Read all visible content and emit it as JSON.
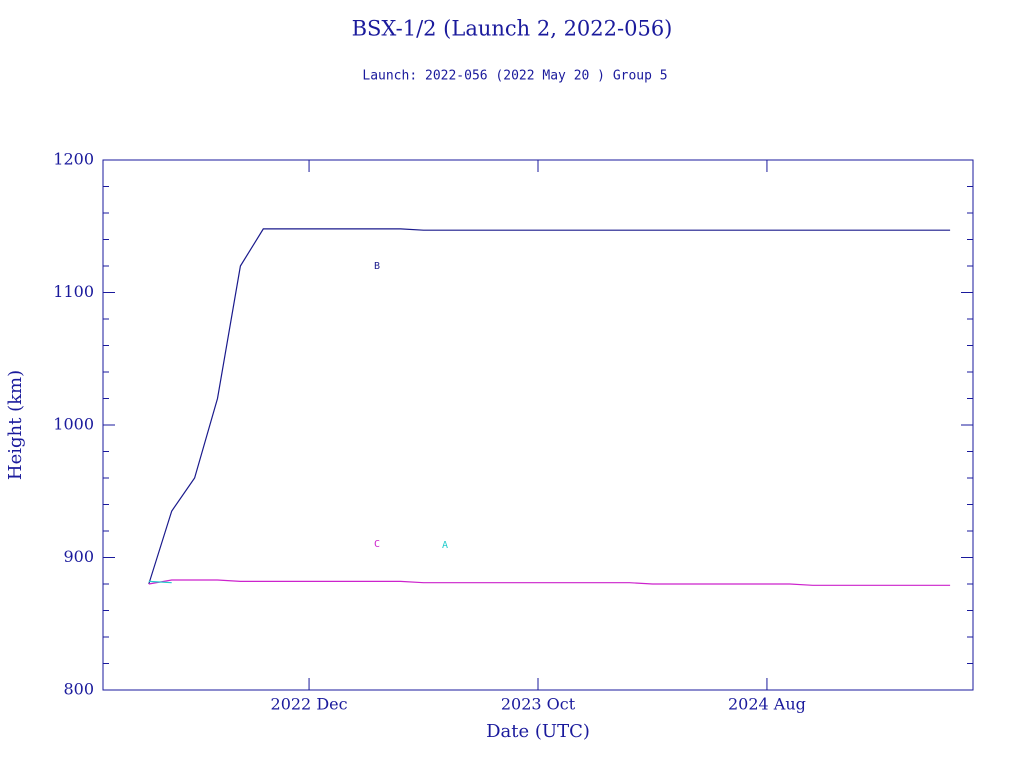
{
  "chart_data": {
    "type": "line",
    "title": "BSX-1/2 (Launch 2, 2022-056)",
    "subtitle": "Launch: 2022-056  (2022 May 20 )  Group 5",
    "x_label": "Date (UTC)",
    "y_label": "Height (km)",
    "xlim": [
      "2022-03",
      "2025-05"
    ],
    "xticks": [
      {
        "value": "2022-12",
        "label": "2022 Dec"
      },
      {
        "value": "2023-10",
        "label": "2023 Oct"
      },
      {
        "value": "2024-08",
        "label": "2024 Aug"
      }
    ],
    "ylim": [
      800,
      1200
    ],
    "yticks": [
      800,
      900,
      1000,
      1100,
      1200
    ],
    "yticks_minor": [
      820,
      840,
      860,
      880,
      920,
      940,
      960,
      980,
      1020,
      1040,
      1060,
      1080,
      1120,
      1140,
      1160,
      1180
    ],
    "x": [
      "2022-05",
      "2022-06",
      "2022-07",
      "2022-08",
      "2022-09",
      "2022-10",
      "2022-11",
      "2022-12",
      "2023-01",
      "2023-02",
      "2023-03",
      "2023-04",
      "2023-05",
      "2023-06",
      "2023-07",
      "2023-08",
      "2023-09",
      "2023-10",
      "2023-11",
      "2023-12",
      "2024-01",
      "2024-02",
      "2024-03",
      "2024-04",
      "2024-05",
      "2024-06",
      "2024-07",
      "2024-08",
      "2024-09",
      "2024-10",
      "2024-11",
      "2024-12",
      "2025-01",
      "2025-02",
      "2025-03",
      "2025-04"
    ],
    "series": [
      {
        "name": "B",
        "color": "#1a1a8c",
        "values": [
          880,
          935,
          960,
          1020,
          1120,
          1148,
          1148,
          1148,
          1148,
          1148,
          1148,
          1148,
          1147,
          1147,
          1147,
          1147,
          1147,
          1147,
          1147,
          1147,
          1147,
          1147,
          1147,
          1147,
          1147,
          1147,
          1147,
          1147,
          1147,
          1147,
          1147,
          1147,
          1147,
          1147,
          1147,
          1147
        ]
      },
      {
        "name": "C",
        "color": "#cc22cc",
        "values": [
          880,
          883,
          883,
          883,
          882,
          882,
          882,
          882,
          882,
          882,
          882,
          882,
          881,
          881,
          881,
          881,
          881,
          881,
          881,
          881,
          881,
          881,
          880,
          880,
          880,
          880,
          880,
          880,
          880,
          879,
          879,
          879,
          879,
          879,
          879,
          879
        ]
      },
      {
        "name": "A",
        "color": "#22cccc",
        "values": [
          882,
          881,
          null,
          null,
          null,
          null,
          null,
          null,
          null,
          null,
          null,
          null,
          null,
          null,
          null,
          null,
          null,
          null,
          null,
          null,
          null,
          null,
          null,
          null,
          null,
          null,
          null,
          null,
          null,
          null,
          null,
          null,
          null,
          null,
          null,
          null
        ]
      }
    ]
  }
}
